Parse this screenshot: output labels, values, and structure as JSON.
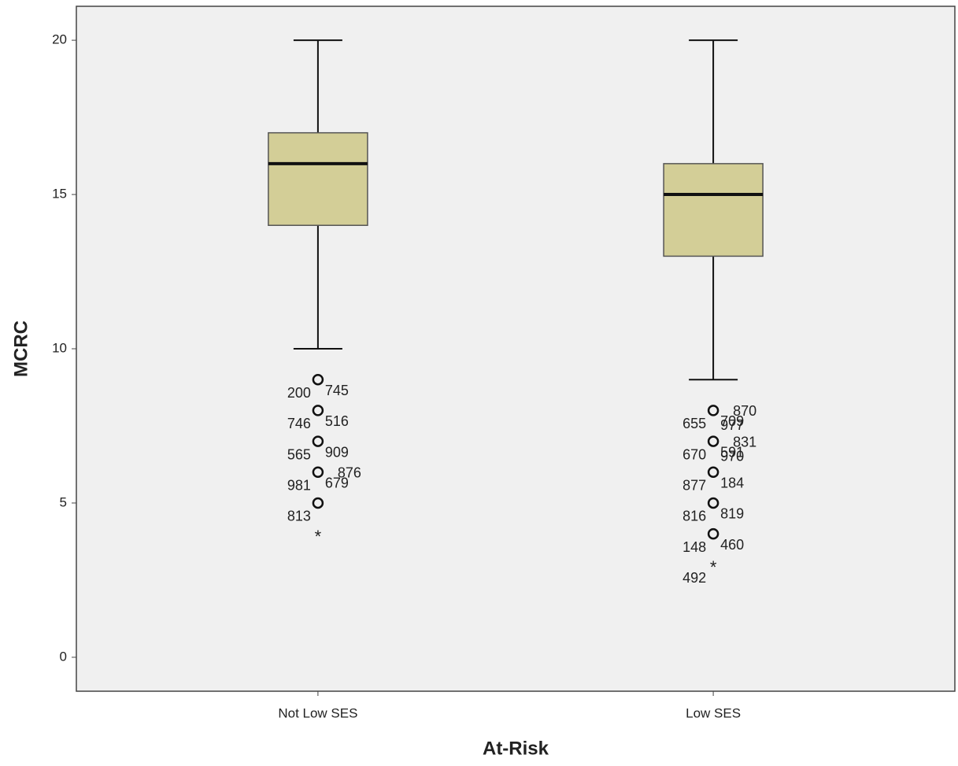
{
  "chart_data": {
    "type": "box",
    "x_label": "At-Risk",
    "y_label": "MCRC",
    "categories": [
      "Not Low SES",
      "Low SES"
    ],
    "color": "#d3ce97",
    "boxes": [
      {
        "whisker_low": 10,
        "q1": 14,
        "median": 16,
        "q3": 17,
        "whisker_high": 20,
        "outliers": [
          {
            "value": 9,
            "labels": [
              "200",
              "745"
            ]
          },
          {
            "value": 8,
            "labels": [
              "746",
              "516"
            ]
          },
          {
            "value": 7,
            "labels": [
              "565",
              "909"
            ]
          },
          {
            "value": 6,
            "labels": [
              "981",
              "679",
              "876"
            ]
          },
          {
            "value": 5,
            "labels": [
              "813"
            ]
          }
        ],
        "extremes": [
          {
            "value": 4,
            "labels": []
          }
        ]
      },
      {
        "whisker_low": 9,
        "q1": 13,
        "median": 15,
        "q3": 16,
        "whisker_high": 20,
        "outliers": [
          {
            "value": 8,
            "labels": [
              "655",
              "709",
              "870",
              "977"
            ]
          },
          {
            "value": 7,
            "labels": [
              "670",
              "591",
              "831",
              "970"
            ]
          },
          {
            "value": 6,
            "labels": [
              "877",
              "184"
            ]
          },
          {
            "value": 5,
            "labels": [
              "816",
              "819"
            ]
          },
          {
            "value": 4,
            "labels": [
              "148",
              "460"
            ]
          }
        ],
        "extremes": [
          {
            "value": 3,
            "labels": [
              "492"
            ]
          }
        ]
      }
    ],
    "ylim": [
      -1.1,
      21.1
    ],
    "yticks": [
      0,
      5,
      10,
      15,
      20
    ]
  }
}
